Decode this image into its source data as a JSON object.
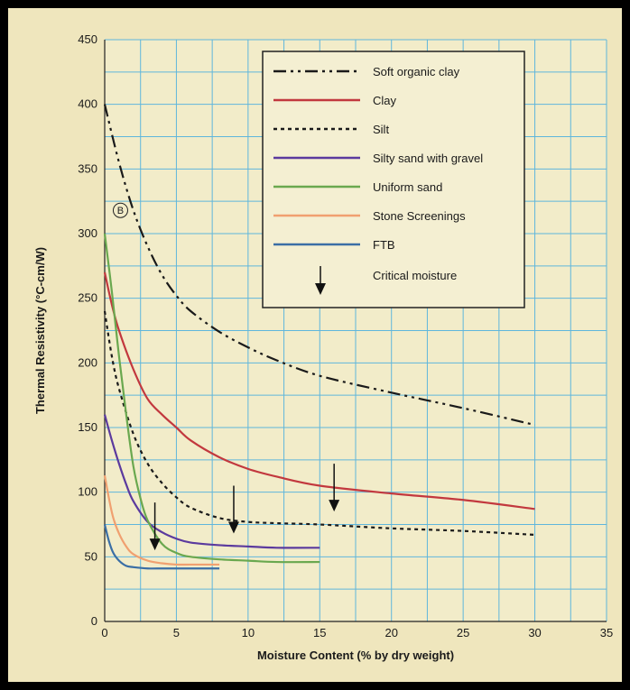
{
  "chart_data": {
    "type": "line",
    "title": "",
    "xlabel": "Moisture Content (% by dry weight)",
    "ylabel": "Thermal Resistivity (°C-cm/W)",
    "xlim": [
      0,
      35
    ],
    "ylim": [
      0,
      450
    ],
    "xticks": [
      0,
      5,
      10,
      15,
      20,
      25,
      30,
      35
    ],
    "yticks": [
      0,
      50,
      100,
      150,
      200,
      250,
      300,
      350,
      400,
      450
    ],
    "grid": true,
    "legend_position": "top-right",
    "marker_label": "B",
    "series": [
      {
        "name": "Soft organic clay",
        "color": "#1a1a1a",
        "dash": "dashdot",
        "x": [
          0,
          1,
          2,
          3,
          4,
          5,
          6,
          8,
          10,
          12,
          15,
          20,
          25,
          30
        ],
        "y": [
          400,
          355,
          318,
          290,
          268,
          252,
          240,
          224,
          212,
          202,
          190,
          177,
          165,
          152
        ]
      },
      {
        "name": "Clay",
        "color": "#c2383e",
        "dash": "solid",
        "x": [
          0,
          0.5,
          1,
          2,
          3,
          4,
          5,
          6,
          8,
          10,
          12,
          15,
          20,
          25,
          30
        ],
        "y": [
          270,
          245,
          225,
          195,
          172,
          160,
          150,
          140,
          127,
          118,
          112,
          105,
          99,
          94,
          87
        ]
      },
      {
        "name": "Silt",
        "color": "#1a1a1a",
        "dash": "dotted",
        "x": [
          0,
          0.5,
          1,
          2,
          3,
          4,
          5,
          6,
          8,
          10,
          12,
          15,
          20,
          25,
          30
        ],
        "y": [
          240,
          205,
          180,
          145,
          122,
          107,
          96,
          88,
          80,
          77,
          76,
          75,
          72,
          70,
          67
        ]
      },
      {
        "name": "Silty sand with gravel",
        "color": "#5b3a9e",
        "dash": "solid",
        "x": [
          0,
          0.5,
          1,
          1.5,
          2,
          3,
          4,
          5,
          6,
          8,
          10,
          12,
          15
        ],
        "y": [
          160,
          140,
          122,
          106,
          93,
          77,
          69,
          64,
          61,
          59,
          58,
          57,
          57
        ]
      },
      {
        "name": "Uniform sand",
        "color": "#6aa84f",
        "dash": "solid",
        "x": [
          0,
          0.5,
          1,
          1.5,
          2,
          2.5,
          3,
          4,
          5,
          6,
          8,
          10,
          12,
          15
        ],
        "y": [
          300,
          255,
          205,
          160,
          120,
          95,
          78,
          60,
          53,
          50,
          48,
          47,
          46,
          46
        ]
      },
      {
        "name": "Stone Screenings",
        "color": "#f0a070",
        "dash": "solid",
        "x": [
          0,
          0.3,
          0.6,
          1,
          1.5,
          2,
          3,
          4,
          5,
          6,
          8
        ],
        "y": [
          113,
          95,
          80,
          68,
          58,
          52,
          47,
          45,
          44,
          44,
          44
        ]
      },
      {
        "name": "FTB",
        "color": "#3a6ea5",
        "dash": "solid",
        "x": [
          0,
          0.3,
          0.6,
          1,
          1.5,
          2,
          3,
          4,
          5,
          6,
          8
        ],
        "y": [
          75,
          62,
          53,
          47,
          43,
          42,
          41,
          41,
          41,
          41,
          41
        ]
      }
    ],
    "critical_moisture_label": "Critical moisture",
    "critical_moisture_arrows": [
      {
        "x": 3.5,
        "y_top": 92,
        "y_bottom": 55
      },
      {
        "x": 9.0,
        "y_top": 105,
        "y_bottom": 68
      },
      {
        "x": 16.0,
        "y_top": 122,
        "y_bottom": 85
      }
    ]
  }
}
